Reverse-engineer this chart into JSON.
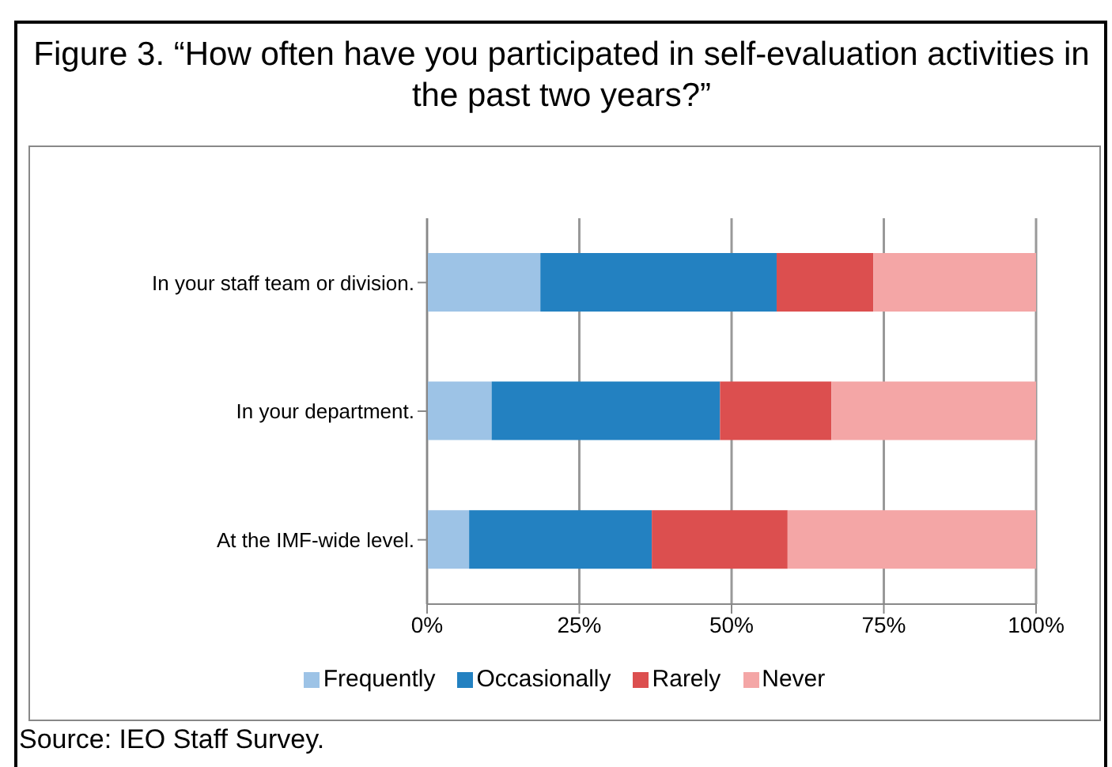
{
  "chart_data": {
    "type": "bar",
    "orientation": "horizontal",
    "stacked": true,
    "title": "Figure 3. “How often have you participated in self-evaluation activities in the past two years?”",
    "categories": [
      "In your staff team or division.",
      "In your department.",
      "At the IMF-wide level."
    ],
    "series": [
      {
        "name": "Frequently",
        "color": "#9dc3e6",
        "values": [
          18.6,
          10.6,
          6.9
        ]
      },
      {
        "name": "Occasionally",
        "color": "#2381c1",
        "values": [
          38.8,
          37.5,
          30.0
        ]
      },
      {
        "name": "Rarely",
        "color": "#dc4f4f",
        "values": [
          15.9,
          18.3,
          22.3
        ]
      },
      {
        "name": "Never",
        "color": "#f4a6a6",
        "values": [
          26.7,
          33.6,
          40.8
        ]
      }
    ],
    "xlim": [
      0,
      100
    ],
    "xticks": [
      {
        "value": 0,
        "label": "0%"
      },
      {
        "value": 25,
        "label": "25%"
      },
      {
        "value": 50,
        "label": "50%"
      },
      {
        "value": 75,
        "label": "75%"
      },
      {
        "value": 100,
        "label": "100%"
      }
    ],
    "grid": "x",
    "legend": "bottom",
    "annotations": [
      "Source: IEO Staff Survey."
    ]
  }
}
